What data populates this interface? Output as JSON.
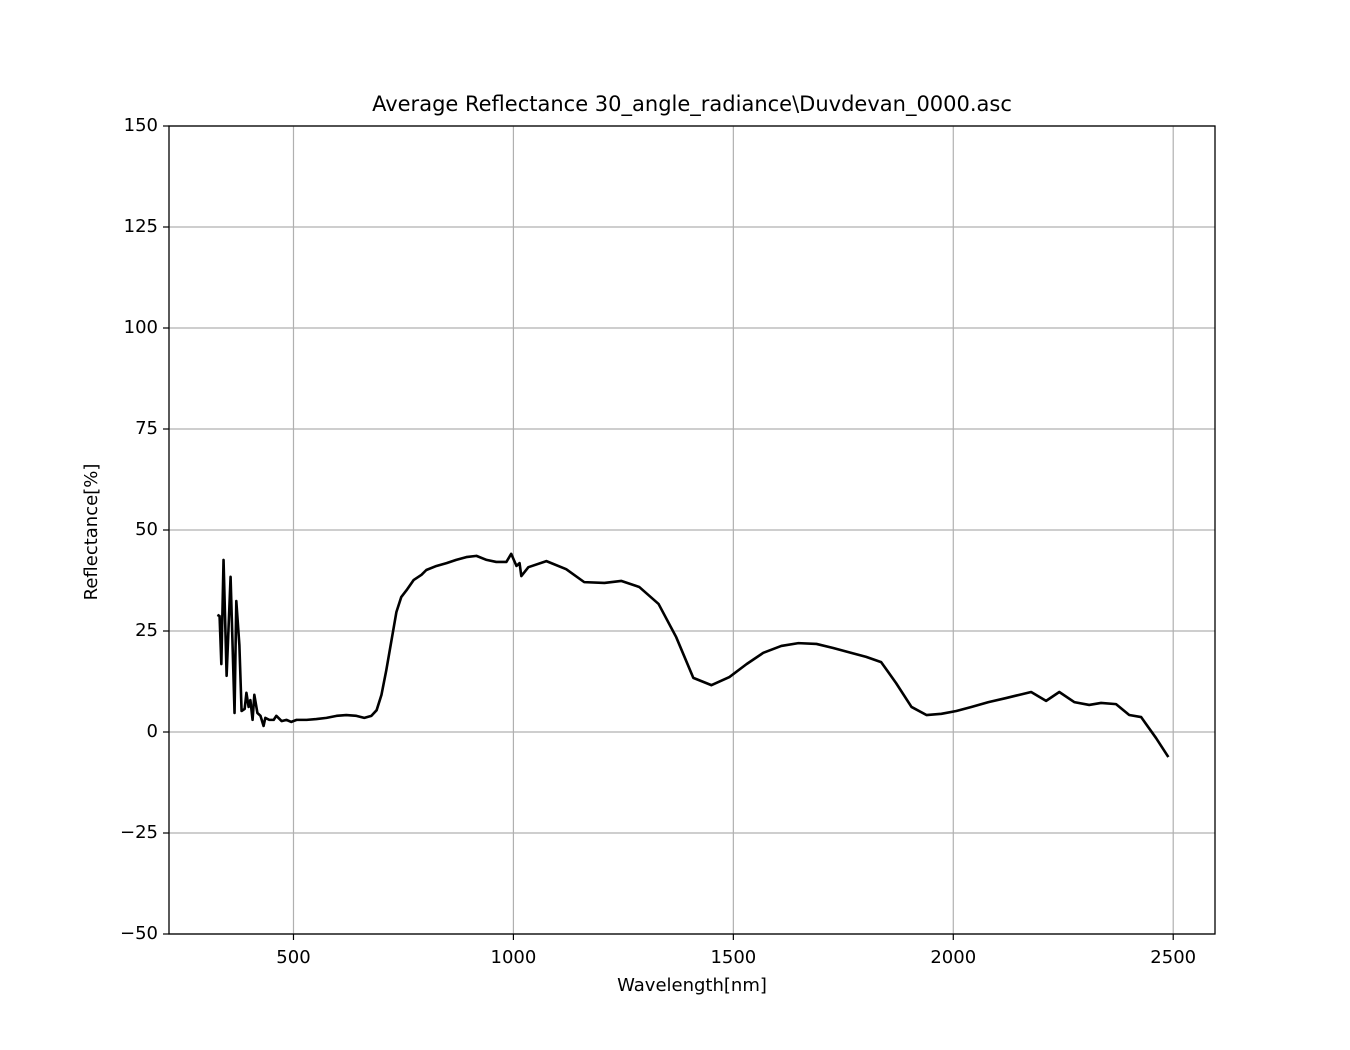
{
  "chart_data": {
    "type": "line",
    "title": "Average Reflectance 30_angle_radiance\\Duvdevan_0000.asc",
    "x_label": "Wavelength[nm]",
    "y_label": "Reflectance[%]",
    "color": "#000000",
    "grid": true,
    "x": [
      327,
      332,
      336,
      341,
      348,
      357,
      366,
      370,
      377,
      382,
      389,
      393,
      398,
      402,
      407,
      411,
      418,
      425,
      432,
      436,
      445,
      455,
      461,
      473,
      484,
      495,
      507,
      530,
      552,
      575,
      598,
      620,
      643,
      661,
      677,
      689,
      700,
      711,
      723,
      734,
      745,
      757,
      773,
      791,
      802,
      825,
      848,
      870,
      893,
      916,
      939,
      961,
      984,
      995,
      1007,
      1014,
      1018,
      1034,
      1075,
      1120,
      1161,
      1207,
      1245,
      1286,
      1330,
      1370,
      1409,
      1450,
      1491,
      1530,
      1568,
      1609,
      1648,
      1689,
      1727,
      1768,
      1802,
      1836,
      1870,
      1905,
      1939,
      1973,
      2007,
      2041,
      2080,
      2120,
      2150,
      2177,
      2211,
      2241,
      2275,
      2309,
      2336,
      2370,
      2400,
      2427,
      2461,
      2489
    ],
    "values": [
      29,
      28.7,
      16.8,
      42.6,
      13.9,
      38.4,
      4.7,
      32.4,
      21.5,
      5.2,
      5.7,
      9.7,
      6.2,
      7.9,
      3.0,
      9.2,
      4.7,
      4.0,
      1.5,
      3.5,
      3.0,
      3.0,
      4.0,
      2.7,
      3.0,
      2.5,
      3.0,
      3.0,
      3.2,
      3.5,
      4.0,
      4.2,
      4.0,
      3.5,
      4.0,
      5.4,
      9.2,
      15.3,
      22.8,
      29.7,
      33.4,
      35.1,
      37.6,
      38.9,
      40.1,
      41.1,
      41.8,
      42.6,
      43.3,
      43.6,
      42.6,
      42.1,
      42.1,
      44.1,
      41.1,
      41.8,
      38.6,
      40.8,
      42.3,
      40.3,
      37.1,
      36.9,
      37.4,
      35.9,
      31.7,
      23.5,
      13.4,
      11.6,
      13.6,
      16.8,
      19.6,
      21.3,
      22.0,
      21.8,
      20.8,
      19.6,
      18.6,
      17.3,
      12.1,
      6.2,
      4.2,
      4.5,
      5.2,
      6.2,
      7.4,
      8.4,
      9.2,
      9.9,
      7.7,
      9.9,
      7.4,
      6.7,
      7.2,
      6.9,
      4.2,
      3.7,
      -1.5,
      -6.2
    ],
    "xlim": [
      217,
      2595
    ],
    "xticks": [
      500,
      1000,
      1500,
      2000,
      2500
    ],
    "ylim": [
      -50,
      150
    ],
    "yticks": [
      {
        "value": -50,
        "label": "−50"
      },
      {
        "value": -25,
        "label": "−25"
      },
      0,
      25,
      50,
      75,
      100,
      125,
      150
    ]
  }
}
